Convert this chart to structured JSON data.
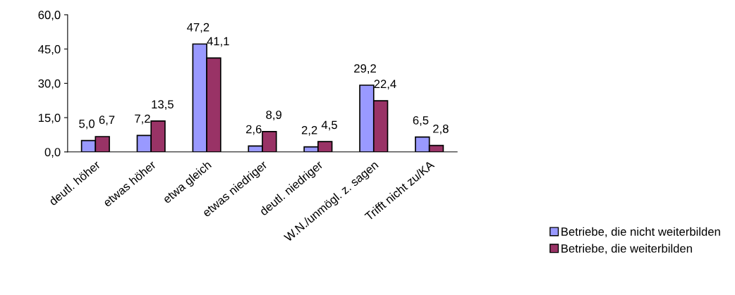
{
  "chart_data": {
    "type": "bar",
    "categories": [
      "deutl. höher",
      "etwas höher",
      "etwa gleich",
      "etwas niedriger",
      "deutl. niedriger",
      "W.N./unmögl. z. sagen",
      "Trifft nicht zu/KA"
    ],
    "series": [
      {
        "name": "Betriebe, die nicht weiterbilden",
        "color": "#9999ff",
        "values": [
          5.0,
          7.2,
          47.2,
          2.6,
          2.2,
          29.2,
          6.5
        ],
        "value_labels": [
          "5,0",
          "7,2",
          "47,2",
          "2,6",
          "2,2",
          "29,2",
          "6,5"
        ]
      },
      {
        "name": "Betriebe, die weiterbilden",
        "color": "#993366",
        "values": [
          6.7,
          13.5,
          41.1,
          8.9,
          4.5,
          22.4,
          2.8
        ],
        "value_labels": [
          "6,7",
          "13,5",
          "41,1",
          "8,9",
          "4,5",
          "22,4",
          "2,8"
        ]
      }
    ],
    "ylim": [
      0,
      60
    ],
    "yticks": [
      {
        "value": 0,
        "label": "0,0"
      },
      {
        "value": 15,
        "label": "15,0"
      },
      {
        "value": 30,
        "label": "30,0"
      },
      {
        "value": 45,
        "label": "45,0"
      },
      {
        "value": 60,
        "label": "60,0"
      }
    ],
    "grid": false,
    "legend": "bottom right"
  }
}
